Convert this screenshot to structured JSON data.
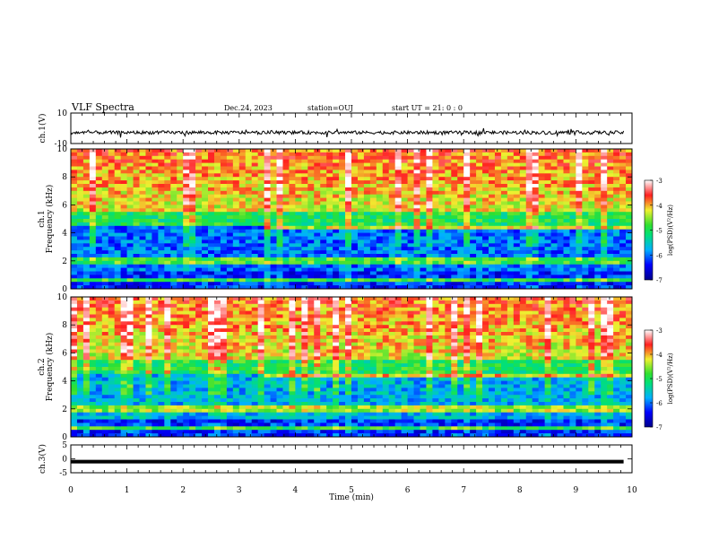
{
  "header": {
    "title": "VLF Spectra",
    "date": "Dec.24, 2023",
    "station": "station=OUJ",
    "start": "start  UT =   21: 0  : 0"
  },
  "colorbar": {
    "label": "log(PSD)(V²/Hz)",
    "ticks": [
      "-3",
      "-4",
      "-5",
      "-6",
      "-7"
    ]
  },
  "chart_data": [
    {
      "type": "line",
      "panel": "ch1-waveform",
      "ylabel": "ch.1(V)",
      "ylim": [
        -10,
        10
      ],
      "yticks": [
        "10",
        "-10"
      ],
      "xlim": [
        0,
        10
      ],
      "series": [
        {
          "values_approx": [
            -2,
            -3,
            -2.5,
            -3,
            -2,
            -3.5,
            -2.5,
            -3,
            -2,
            -3
          ]
        }
      ]
    },
    {
      "type": "heatmap",
      "panel": "ch1-spectrogram",
      "ylabel": "ch.1 Frequency (kHz)",
      "ylim": [
        0,
        10
      ],
      "yticks": [
        "10",
        "8",
        "6",
        "4",
        "2",
        "0"
      ],
      "xlim": [
        0,
        10
      ],
      "zlim": [
        -7,
        -3
      ]
    },
    {
      "type": "heatmap",
      "panel": "ch2-spectrogram",
      "ylabel": "ch.2 Frequency (kHz)",
      "ylim": [
        0,
        10
      ],
      "yticks": [
        "10",
        "8",
        "6",
        "4",
        "2",
        "0"
      ],
      "xlim": [
        0,
        10
      ],
      "zlim": [
        -7,
        -3
      ]
    },
    {
      "type": "line",
      "panel": "ch3-waveform",
      "ylabel": "ch.3(V)",
      "ylim": [
        -5,
        5
      ],
      "yticks": [
        "5",
        "0",
        "-5"
      ],
      "xlim": [
        0,
        10
      ],
      "xlabel": "Time (min)",
      "xticks": [
        "0",
        "1",
        "2",
        "3",
        "4",
        "5",
        "6",
        "7",
        "8",
        "9",
        "10"
      ],
      "series": [
        {
          "values_approx": [
            -1,
            -1,
            -1,
            -1,
            -1,
            -1,
            -1,
            -1,
            -1,
            -1
          ]
        }
      ]
    }
  ]
}
